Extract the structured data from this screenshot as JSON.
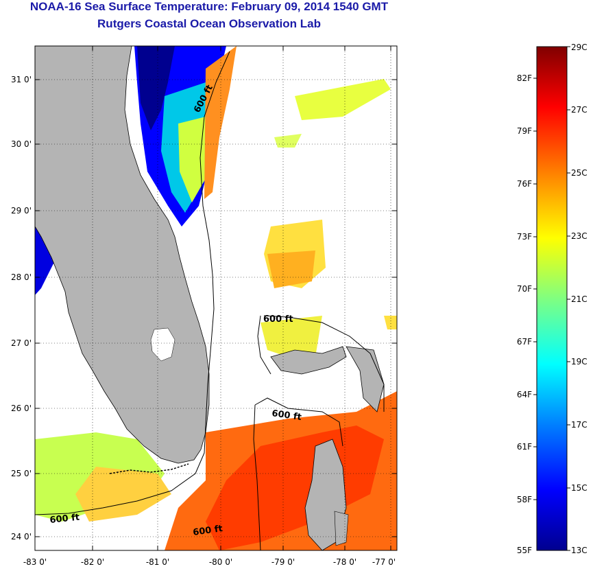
{
  "header": {
    "title": "NOAA-16 Sea Surface Temperature:  February 09, 2014 1540 GMT",
    "subtitle": "Rutgers Coastal Ocean Observation Lab"
  },
  "map": {
    "lat_labels": [
      "31 0'",
      "30 0'",
      "29 0'",
      "28 0'",
      "27 0'",
      "26 0'",
      "25 0'",
      "24 0'"
    ],
    "lon_labels": [
      "-83 0'",
      "-82 0'",
      "-81 0'",
      "-80 0'",
      "-79 0'",
      "-78 0'",
      "-77 0'"
    ],
    "contour_labels": [
      "600 ft",
      "600 ft",
      "600 ft",
      "600 ft",
      "600 ft"
    ],
    "land_color": "#b4b4b4",
    "cloud_color": "#ffffff"
  },
  "colorbar": {
    "fahrenheit": [
      "82F",
      "79F",
      "76F",
      "73F",
      "70F",
      "67F",
      "64F",
      "61F",
      "58F",
      "55F"
    ],
    "celsius": [
      "29C",
      "27C",
      "25C",
      "23C",
      "21C",
      "19C",
      "17C",
      "15C",
      "13C"
    ],
    "colors": [
      "#00008f",
      "#0000ff",
      "#0080ff",
      "#00ffff",
      "#80ff80",
      "#ffff00",
      "#ff8000",
      "#ff0000",
      "#800000"
    ]
  }
}
